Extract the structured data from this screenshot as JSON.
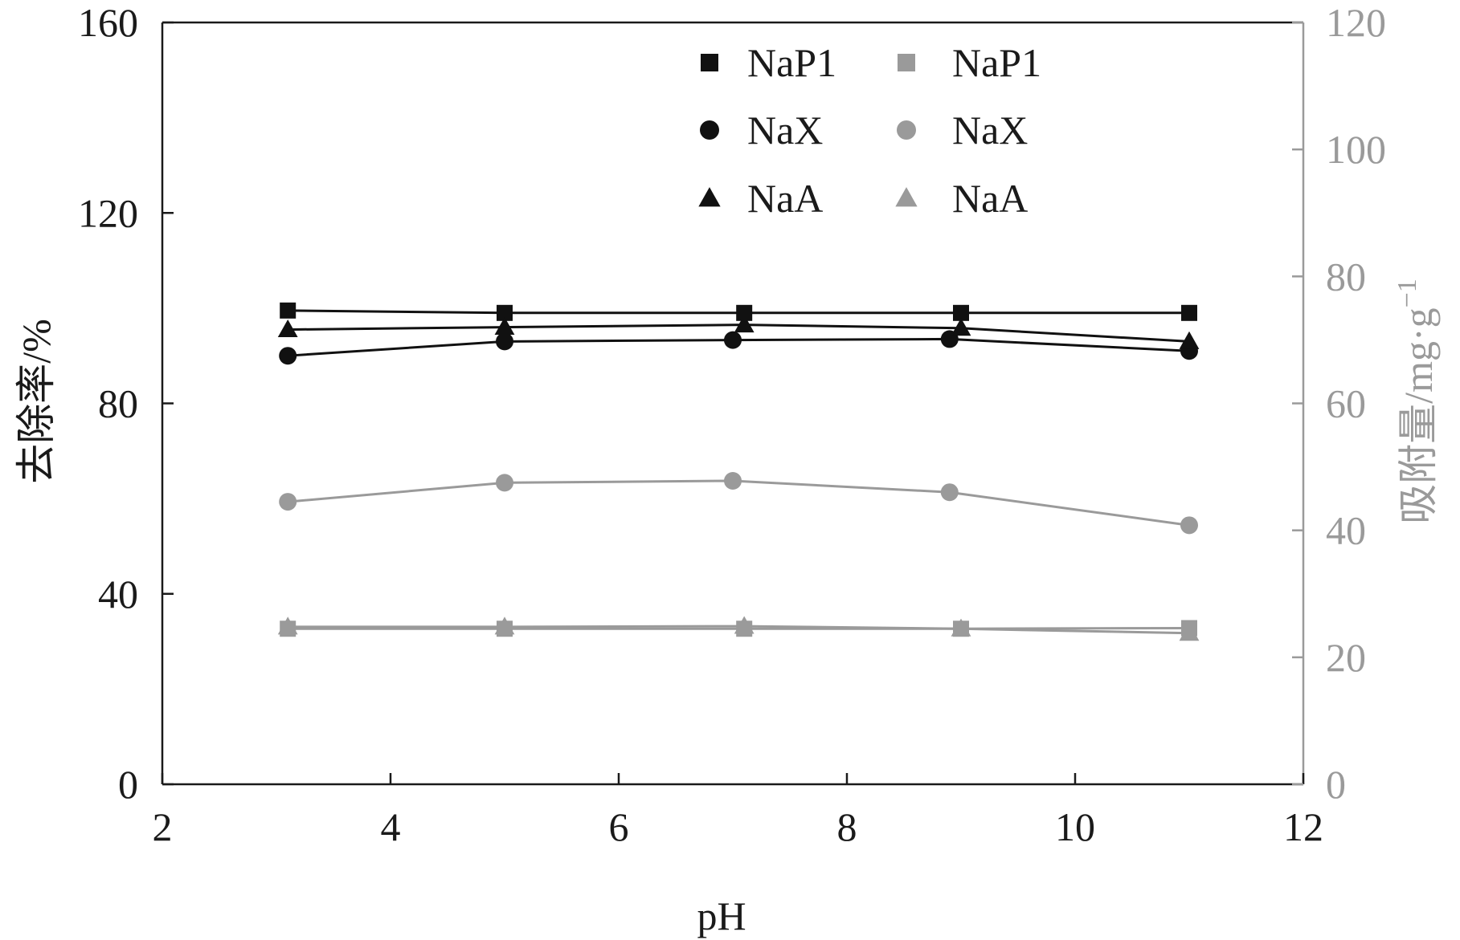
{
  "chart_data": {
    "type": "line",
    "title": "",
    "xlabel": "pH",
    "ylabel": "去除率/%",
    "y2label": "吸附量/mg·g",
    "y2label_superscript": "−1",
    "xlim": [
      2,
      12
    ],
    "ylim": [
      0,
      160
    ],
    "y2lim": [
      0,
      120
    ],
    "xticks": [
      "2",
      "4",
      "6",
      "8",
      "10",
      "12"
    ],
    "yticks": [
      "0",
      "40",
      "80",
      "120",
      "160"
    ],
    "y2ticks": [
      "0",
      "20",
      "40",
      "60",
      "80",
      "100",
      "120"
    ],
    "grid": false,
    "legend_position": "top-right",
    "colors": {
      "primary": "#111111",
      "secondary": "#9a9a9a"
    },
    "series": [
      {
        "name": "NaP1",
        "marker": "square",
        "color": "#111111",
        "axis": "left",
        "x": [
          3.1,
          5.0,
          7.1,
          9.0,
          11.0
        ],
        "y": [
          99.5,
          99.0,
          99.0,
          99.0,
          99.0
        ]
      },
      {
        "name": "NaX",
        "marker": "circle",
        "color": "#111111",
        "axis": "left",
        "x": [
          3.1,
          5.0,
          7.0,
          8.9,
          11.0
        ],
        "y": [
          90.0,
          93.0,
          93.3,
          93.5,
          91.0
        ]
      },
      {
        "name": "NaA",
        "marker": "triangle",
        "color": "#111111",
        "axis": "left",
        "x": [
          3.1,
          5.0,
          7.1,
          9.0,
          11.0
        ],
        "y": [
          95.5,
          96.0,
          96.5,
          95.8,
          93.0
        ]
      },
      {
        "name": "NaP1",
        "marker": "square",
        "color": "#9a9a9a",
        "axis": "right",
        "x": [
          3.1,
          5.0,
          7.1,
          9.0,
          11.0
        ],
        "y": [
          24.5,
          24.5,
          24.5,
          24.5,
          24.6
        ]
      },
      {
        "name": "NaX",
        "marker": "circle",
        "color": "#9a9a9a",
        "axis": "right",
        "x": [
          3.1,
          5.0,
          7.0,
          8.9,
          11.0
        ],
        "y": [
          44.5,
          47.5,
          47.8,
          46.0,
          40.8
        ]
      },
      {
        "name": "NaA",
        "marker": "triangle",
        "color": "#9a9a9a",
        "axis": "right",
        "x": [
          3.1,
          5.0,
          7.1,
          9.0,
          11.0
        ],
        "y": [
          24.8,
          24.8,
          24.9,
          24.5,
          23.8
        ]
      }
    ]
  }
}
